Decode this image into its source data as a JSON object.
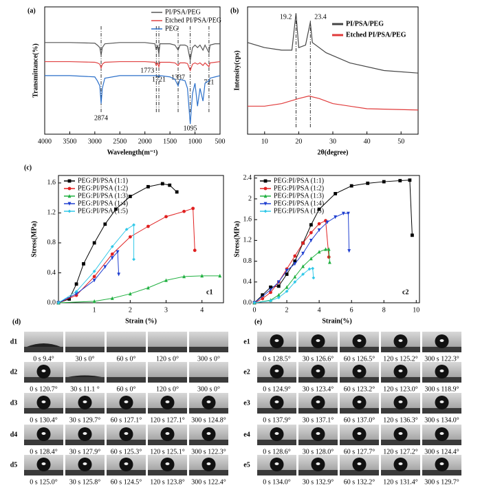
{
  "chart_data": [
    {
      "type": "line",
      "panel_label": "(a)",
      "xlabel": "Wavelength(m⁻¹)",
      "ylabel": "Transmittance(%)",
      "x": [
        4000,
        3500,
        3000,
        2950,
        2900,
        2874,
        2850,
        2800,
        2500,
        2000,
        1800,
        1773,
        1750,
        1721,
        1700,
        1500,
        1400,
        1337,
        1300,
        1200,
        1150,
        1095,
        1050,
        1000,
        950,
        900,
        841,
        800,
        721,
        700,
        600,
        500
      ],
      "series": [
        {
          "name": "PI/PSA/PEG",
          "color": "#555555",
          "values": [
            72,
            72,
            71.5,
            70,
            68,
            62,
            68,
            71,
            72,
            72,
            71,
            66,
            70,
            63,
            71,
            71,
            70,
            66,
            70,
            70,
            69,
            58,
            68,
            70,
            68,
            70,
            66,
            70,
            64,
            70,
            71,
            71
          ]
        },
        {
          "name": "Etched PI/PSA/PEG",
          "color": "#e04040",
          "values": [
            57,
            57,
            56.5,
            56,
            55,
            52,
            55,
            56.5,
            57,
            57,
            56.5,
            54,
            56,
            53,
            56.5,
            56.5,
            56,
            54,
            56,
            56,
            55.5,
            50,
            55,
            56,
            55,
            56,
            54,
            56,
            53,
            56,
            56.5,
            57
          ]
        },
        {
          "name": "PEG",
          "color": "#2a6fc9",
          "values": [
            46,
            46,
            45,
            42,
            38,
            24,
            36,
            44,
            46,
            46,
            46,
            46,
            46,
            45,
            46,
            45,
            43,
            38,
            43,
            42,
            36,
            8,
            32,
            40,
            22,
            36,
            26,
            40,
            42,
            44,
            45,
            46
          ]
        }
      ],
      "annotations": [
        2874,
        1773,
        1721,
        1337,
        1095,
        721
      ],
      "xlim": [
        4000,
        500
      ],
      "xticks": [
        4000,
        3500,
        3000,
        2500,
        2000,
        1500,
        1000,
        500
      ],
      "ylim": [
        0,
        100
      ],
      "legend": "upper right"
    },
    {
      "type": "line",
      "panel_label": "(b)",
      "xlabel": "2θ(degree)",
      "ylabel": "Intensity(cps)",
      "series": [
        {
          "name": "PI/PSA/PEG",
          "color": "#444444",
          "x": [
            5,
            10,
            15,
            18,
            19.2,
            20,
            22,
            23.4,
            24,
            28,
            35,
            45,
            55
          ],
          "values": [
            72,
            68,
            66,
            66,
            95,
            68,
            70,
            88,
            72,
            64,
            56,
            50,
            48
          ]
        },
        {
          "name": "Etched  PI/PSA/PEG",
          "color": "#e03a3a",
          "x": [
            5,
            10,
            15,
            20,
            23,
            26,
            30,
            40,
            55
          ],
          "values": [
            22,
            22,
            24,
            28,
            30,
            28,
            24,
            20,
            19
          ]
        }
      ],
      "annotations": [
        19.2,
        23.4
      ],
      "xlim": [
        5,
        55
      ],
      "xticks": [
        10,
        20,
        30,
        40,
        50
      ],
      "ylim": [
        0,
        100
      ],
      "legend": "upper right"
    },
    {
      "type": "line",
      "panel_label": "(c)",
      "inset_label": "c1",
      "xlabel": "Strain (%)",
      "ylabel": "Stress(MPa)",
      "markers": true,
      "series": [
        {
          "name": "PEG:PI/PSA (1:1)",
          "color": "#000000",
          "x": [
            0,
            0.3,
            0.5,
            0.7,
            1,
            1.3,
            1.6,
            2,
            2.5,
            2.9,
            3.1,
            3.3
          ],
          "values": [
            0,
            0.05,
            0.25,
            0.52,
            0.8,
            1.05,
            1.25,
            1.42,
            1.55,
            1.59,
            1.57,
            1.48
          ]
        },
        {
          "name": "PEG:PI/PSA (1:2)",
          "color": "#e02020",
          "x": [
            0,
            0.5,
            1,
            1.5,
            2,
            2.5,
            3,
            3.5,
            3.75,
            3.8
          ],
          "values": [
            0,
            0.1,
            0.35,
            0.65,
            0.88,
            1.02,
            1.15,
            1.22,
            1.26,
            0.7
          ]
        },
        {
          "name": "PEG:PI/PSA (1:3)",
          "color": "#20b040",
          "x": [
            0,
            1,
            1.5,
            2,
            2.5,
            3,
            3.5,
            4,
            4.5
          ],
          "values": [
            0,
            0.02,
            0.06,
            0.12,
            0.2,
            0.3,
            0.35,
            0.36,
            0.36
          ]
        },
        {
          "name": "PEG:PI/PSA (1:4)",
          "color": "#2040d0",
          "x": [
            0,
            0.5,
            1,
            1.3,
            1.5,
            1.65,
            1.68
          ],
          "values": [
            0,
            0.12,
            0.3,
            0.48,
            0.6,
            0.68,
            0.38
          ]
        },
        {
          "name": "PEG:PI/PSA (1:5)",
          "color": "#30c8e8",
          "x": [
            0,
            0.5,
            1,
            1.5,
            1.9,
            2.1,
            2.1
          ],
          "values": [
            0,
            0.15,
            0.42,
            0.75,
            0.98,
            1.04,
            0.58
          ]
        }
      ],
      "xlim": [
        0,
        4.6
      ],
      "xticks": [
        1,
        2,
        3,
        4
      ],
      "ylim": [
        0,
        1.7
      ],
      "yticks": [
        {
          "value": 0,
          "label": "0.0"
        },
        0.4,
        0.8,
        1.2,
        1.6
      ],
      "legend": "upper left"
    },
    {
      "type": "line",
      "inset_label": "c2",
      "xlabel": "Strain(%)",
      "ylabel": "Stress(MPa)",
      "markers": true,
      "series": [
        {
          "name": "PEG:PI/PSA (1:1)",
          "color": "#000000",
          "x": [
            0,
            0.5,
            1,
            1.5,
            2,
            2.5,
            3,
            3.5,
            4,
            5,
            6,
            7,
            8,
            9,
            9.6,
            9.75
          ],
          "values": [
            0,
            0.15,
            0.3,
            0.32,
            0.55,
            0.8,
            1.15,
            1.5,
            1.8,
            2.1,
            2.25,
            2.3,
            2.33,
            2.35,
            2.36,
            1.3
          ]
        },
        {
          "name": "PEG:PI/PSA (1:2)",
          "color": "#e02020",
          "x": [
            0,
            0.5,
            1,
            1.5,
            2,
            2.5,
            3,
            3.5,
            4,
            4.4,
            4.6
          ],
          "values": [
            0,
            0.08,
            0.2,
            0.4,
            0.65,
            0.9,
            1.15,
            1.35,
            1.52,
            1.58,
            0.88
          ]
        },
        {
          "name": "PEG:PI/PSA (1:3)",
          "color": "#20b040",
          "x": [
            0,
            1,
            1.5,
            2,
            2.5,
            3,
            3.5,
            4,
            4.4,
            4.6,
            4.65
          ],
          "values": [
            0,
            0.05,
            0.15,
            0.3,
            0.5,
            0.7,
            0.85,
            0.98,
            1.03,
            1.03,
            0.78
          ]
        },
        {
          "name": "PEG:PI/PSA (1:4)",
          "color": "#2040d0",
          "x": [
            0,
            1,
            1.5,
            2,
            2.5,
            3,
            3.5,
            4,
            4.5,
            5,
            5.5,
            5.8,
            5.85
          ],
          "values": [
            0,
            0.25,
            0.4,
            0.62,
            0.75,
            0.95,
            1.2,
            1.4,
            1.55,
            1.65,
            1.72,
            1.72,
            1.0
          ]
        },
        {
          "name": "PEG:PI/PSA (1:5)",
          "color": "#30c8e8",
          "x": [
            0,
            1,
            1.5,
            2,
            2.5,
            3,
            3.4,
            3.6,
            3.65
          ],
          "values": [
            0,
            0.04,
            0.1,
            0.22,
            0.4,
            0.55,
            0.65,
            0.66,
            0.48
          ]
        }
      ],
      "xlim": [
        0,
        10.2
      ],
      "xticks": [
        0,
        2,
        4,
        6,
        8,
        10
      ],
      "ylim": [
        0,
        2.45
      ],
      "yticks": [
        {
          "value": 0,
          "label": "0.0"
        },
        0.4,
        0.8,
        1.2,
        1.6,
        2.0,
        2.4
      ],
      "legend": "upper left"
    }
  ],
  "contact_angles": [
    {
      "panel_label": "(d)",
      "rows": [
        {
          "label": "d1",
          "captions": [
            "0 s 9.4°",
            "30 s 0°",
            "60 s 0°",
            "120 s 0°",
            "300 s 0°"
          ]
        },
        {
          "label": "d2",
          "captions": [
            "0 s 120.7°",
            "30 s 11.1 °",
            "60 s 0°",
            "120 s 0°",
            "300 s 0°"
          ]
        },
        {
          "label": "d3",
          "captions": [
            "0 s 130.4°",
            "30 s 129.7°",
            "60 s 127.1°",
            "120 s 127.1°",
            "300 s 124.8°"
          ]
        },
        {
          "label": "d4",
          "captions": [
            "0 s 128.4°",
            "30 s 127.9°",
            "60 s 125.3°",
            "120 s 125.1°",
            "300 s 122.3°"
          ]
        },
        {
          "label": "d5",
          "captions": [
            "0 s 125.0°",
            "30 s 125.8°",
            "60 s 124.5°",
            "120 s 123.8°",
            "300 s 122.4°"
          ]
        }
      ]
    },
    {
      "panel_label": "(e)",
      "rows": [
        {
          "label": "e1",
          "captions": [
            "0 s 128.5°",
            "30 s 126.6°",
            "60 s 126.5°",
            "120 s 125.2°",
            "300 s 122.3°"
          ]
        },
        {
          "label": "e2",
          "captions": [
            "0 s 124.9°",
            "30 s 123.4°",
            "60 s 123.2°",
            "120 s 123.0°",
            "300 s 118.9°"
          ]
        },
        {
          "label": "e3",
          "captions": [
            "0 s 137.9°",
            "30 s 137.1°",
            "60 s 137.0°",
            "120 s 136.3°",
            "300 s 134.0°"
          ]
        },
        {
          "label": "e4",
          "captions": [
            "0 s 128.6°",
            "30 s 128.0°",
            "60 s 127.7°",
            "120 s 127.2°",
            "300 s 124.4°"
          ]
        },
        {
          "label": "e5",
          "captions": [
            "0 s 134.0°",
            "30 s 132.9°",
            "60 s 132.2°",
            "120 s 131.4°",
            "300 s 129.7°"
          ]
        }
      ]
    }
  ]
}
